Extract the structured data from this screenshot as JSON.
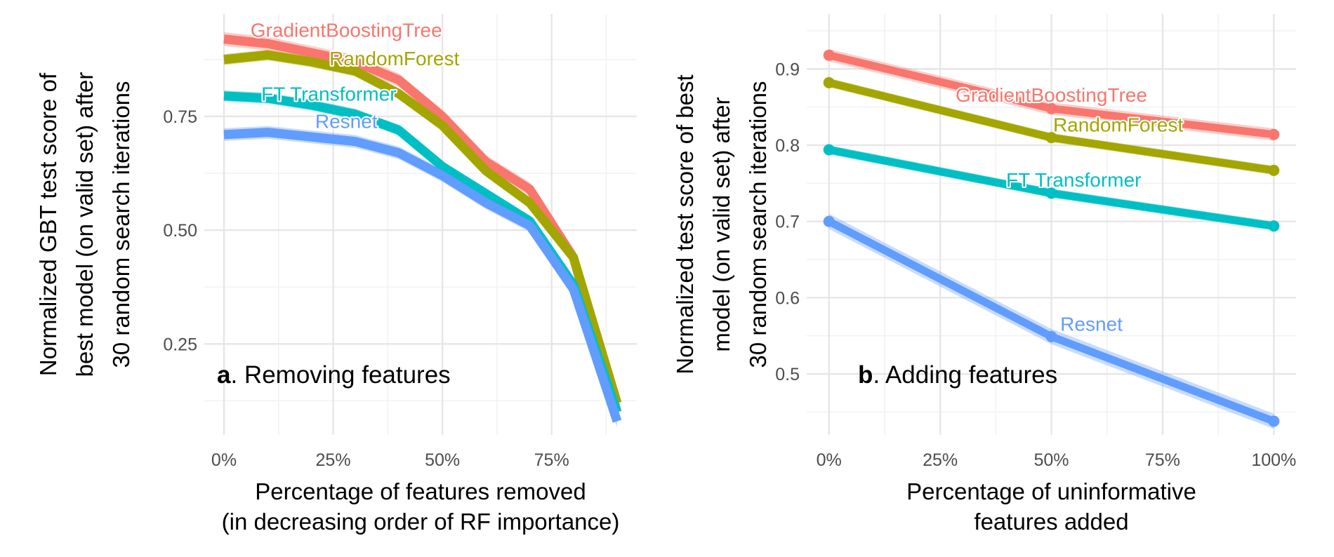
{
  "chart_data": [
    {
      "type": "line",
      "panel_letter": "a",
      "title": "Removing features",
      "xlabel": [
        "Percentage of features removed",
        "(in decreasing order of RF importance)"
      ],
      "ylabel": [
        "Normalized GBT test score of",
        "best model (on valid set) after",
        "30 random search iterations"
      ],
      "x_tick_labels": [
        "0%",
        "25%",
        "50%",
        "75%"
      ],
      "x_ticks": [
        0,
        25,
        50,
        75
      ],
      "y_tick_labels": [
        "0.25",
        "0.50",
        "0.75"
      ],
      "y_ticks": [
        0.25,
        0.5,
        0.75
      ],
      "xlim": [
        -4.5,
        94.5
      ],
      "ylim": [
        0.05,
        0.975
      ],
      "grid": true,
      "legend": "direct labels",
      "x": [
        0,
        10,
        20,
        30,
        40,
        50,
        60,
        70,
        80,
        90
      ],
      "series": [
        {
          "name": "GradientBoostingTree",
          "color": "#F8766D",
          "values": [
            0.92,
            0.91,
            0.89,
            0.87,
            0.83,
            0.75,
            0.65,
            0.59,
            0.44,
            0.1
          ],
          "band": 0.015,
          "label_x": 28,
          "label_y": 0.94
        },
        {
          "name": "RandomForest",
          "color": "#A3A500",
          "values": [
            0.875,
            0.885,
            0.87,
            0.85,
            0.8,
            0.73,
            0.63,
            0.56,
            0.44,
            0.12
          ],
          "band": 0.012,
          "label_x": 39,
          "label_y": 0.878
        },
        {
          "name": "FT Transformer",
          "color": "#00BFC4",
          "values": [
            0.795,
            0.79,
            0.775,
            0.755,
            0.72,
            0.64,
            0.58,
            0.52,
            0.38,
            0.1
          ],
          "band": 0.012,
          "label_x": 24,
          "label_y": 0.8
        },
        {
          "name": "Resnet",
          "color": "#619CFF",
          "values": [
            0.71,
            0.715,
            0.705,
            0.695,
            0.67,
            0.62,
            0.56,
            0.51,
            0.37,
            0.08
          ],
          "band": 0.014,
          "label_x": 28,
          "label_y": 0.74
        }
      ]
    },
    {
      "type": "line",
      "panel_letter": "b",
      "title": "Adding features",
      "xlabel": [
        "Percentage of uninformative",
        "features added"
      ],
      "ylabel": [
        "Normalized test score of best",
        "model (on valid set) after",
        "30 random search iterations"
      ],
      "x_tick_labels": [
        "0%",
        "25%",
        "50%",
        "75%",
        "100%"
      ],
      "x_ticks": [
        0,
        25,
        50,
        75,
        100
      ],
      "y_tick_labels": [
        "0.5",
        "0.6",
        "0.7",
        "0.8",
        "0.9"
      ],
      "y_ticks": [
        0.5,
        0.6,
        0.7,
        0.8,
        0.9
      ],
      "xlim": [
        -5,
        105
      ],
      "ylim": [
        0.42,
        0.972
      ],
      "grid": true,
      "legend": "direct labels",
      "x": [
        0,
        50,
        100
      ],
      "series": [
        {
          "name": "GradientBoostingTree",
          "color": "#F8766D",
          "values": [
            0.918,
            0.848,
            0.814
          ],
          "band": 0.008,
          "label_x": 50,
          "label_y": 0.866
        },
        {
          "name": "RandomForest",
          "color": "#A3A500",
          "values": [
            0.882,
            0.81,
            0.767
          ],
          "band": 0.006,
          "label_x": 65,
          "label_y": 0.827
        },
        {
          "name": "FT Transformer",
          "color": "#00BFC4",
          "values": [
            0.794,
            0.737,
            0.694
          ],
          "band": 0.006,
          "label_x": 55,
          "label_y": 0.755
        },
        {
          "name": "Resnet",
          "color": "#619CFF",
          "values": [
            0.7,
            0.549,
            0.438
          ],
          "band": 0.01,
          "label_x": 59,
          "label_y": 0.566
        }
      ]
    }
  ]
}
